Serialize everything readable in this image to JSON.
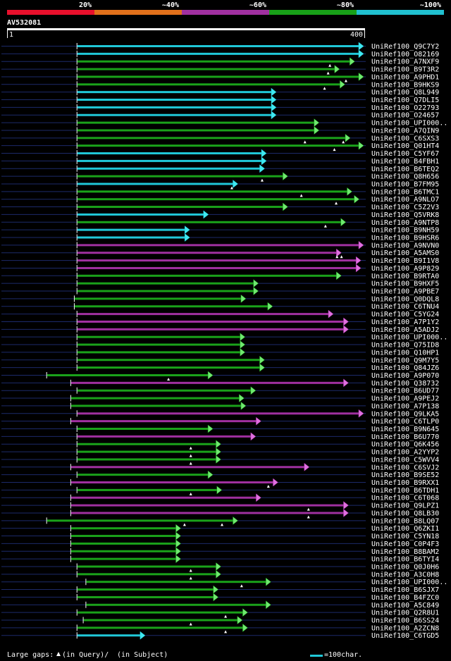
{
  "chart_data": {
    "type": "alignment-overview",
    "query_name": "AV532081",
    "query_start": "1",
    "query_end": "400",
    "query_length": 400,
    "identity_legend": [
      {
        "label": "20%",
        "color": "#e8102c"
      },
      {
        "label": "~40%",
        "color": "#e0701b"
      },
      {
        "label": "~60%",
        "color": "#a030a0"
      },
      {
        "label": "~80%",
        "color": "#18a018"
      },
      {
        "label": "~100%",
        "color": "#20c0d0"
      }
    ],
    "footer_label": "Large gaps:",
    "footer_query": "(in Query)/",
    "footer_subject": "(in Subject)",
    "scale_label": "=100char.",
    "hits": [
      {
        "name": "UniRef100_Q9C7Y2",
        "start": 79,
        "end": 400,
        "color": "cyan",
        "lpad": 32,
        "marks": []
      },
      {
        "name": "UniRef100_O82169",
        "start": 79,
        "end": 400,
        "color": "cyan",
        "lpad": 32,
        "marks": []
      },
      {
        "name": "UniRef100_A7NXF9",
        "start": 79,
        "end": 390,
        "color": "green",
        "lpad": 32,
        "marks": [
          363
        ]
      },
      {
        "name": "UniRef100_B9T3R2",
        "start": 79,
        "end": 373,
        "color": "green",
        "lpad": 32,
        "marks": [
          361
        ]
      },
      {
        "name": "UniRef100_A9PHD1",
        "start": 79,
        "end": 400,
        "color": "green",
        "lpad": 32,
        "marks": [
          381
        ]
      },
      {
        "name": "UniRef100_B9HKS9",
        "start": 79,
        "end": 379,
        "color": "green",
        "lpad": 32,
        "marks": [
          357
        ]
      },
      {
        "name": "UniRef100_Q8L949",
        "start": 79,
        "end": 302,
        "color": "cyan",
        "lpad": 32,
        "marks": []
      },
      {
        "name": "UniRef100_Q7DLI5",
        "start": 79,
        "end": 302,
        "color": "cyan",
        "lpad": 32,
        "marks": []
      },
      {
        "name": "UniRef100_O22793",
        "start": 79,
        "end": 302,
        "color": "cyan",
        "lpad": 32,
        "marks": []
      },
      {
        "name": "UniRef100_O24657",
        "start": 79,
        "end": 302,
        "color": "cyan",
        "lpad": 32,
        "marks": []
      },
      {
        "name": "UniRef100_UPI000..",
        "start": 79,
        "end": 350,
        "color": "green",
        "lpad": 32,
        "marks": []
      },
      {
        "name": "UniRef100_A7QIN9",
        "start": 79,
        "end": 350,
        "color": "green",
        "lpad": 32,
        "marks": []
      },
      {
        "name": "UniRef100_C6SXS3",
        "start": 79,
        "end": 385,
        "color": "green",
        "lpad": 32,
        "marks": [
          335,
          378
        ]
      },
      {
        "name": "UniRef100_Q01HT4",
        "start": 79,
        "end": 400,
        "color": "green",
        "lpad": 32,
        "marks": [
          368
        ]
      },
      {
        "name": "UniRef100_C5YF67",
        "start": 79,
        "end": 291,
        "color": "cyan",
        "lpad": 32,
        "marks": []
      },
      {
        "name": "UniRef100_B4FBH1",
        "start": 79,
        "end": 291,
        "color": "cyan",
        "lpad": 32,
        "marks": []
      },
      {
        "name": "UniRef100_B6TEQ2",
        "start": 79,
        "end": 289,
        "color": "cyan",
        "lpad": 32,
        "marks": []
      },
      {
        "name": "UniRef100_Q8H656",
        "start": 79,
        "end": 315,
        "color": "green",
        "lpad": 32,
        "marks": [
          287
        ]
      },
      {
        "name": "UniRef100_B7FM95",
        "start": 79,
        "end": 259,
        "color": "cyan",
        "lpad": 32,
        "marks": [
          253
        ]
      },
      {
        "name": "UniRef100_B6TMC1",
        "start": 79,
        "end": 387,
        "color": "green",
        "lpad": 32,
        "marks": [
          331
        ]
      },
      {
        "name": "UniRef100_A9NLO7",
        "start": 79,
        "end": 395,
        "color": "green",
        "lpad": 32,
        "marks": [
          370
        ]
      },
      {
        "name": "UniRef100_C5Z2V3",
        "start": 79,
        "end": 315,
        "color": "green",
        "lpad": 32,
        "marks": []
      },
      {
        "name": "UniRef100_Q5VRK8",
        "start": 79,
        "end": 226,
        "color": "cyan",
        "lpad": 32,
        "marks": []
      },
      {
        "name": "UniRef100_A9NTP8",
        "start": 79,
        "end": 380,
        "color": "green",
        "lpad": 32,
        "marks": [
          358
        ]
      },
      {
        "name": "UniRef100_B9NH59",
        "start": 79,
        "end": 205,
        "color": "cyan",
        "lpad": 32,
        "marks": []
      },
      {
        "name": "UniRef100_B9HSR6",
        "start": 79,
        "end": 205,
        "color": "cyan",
        "lpad": 32,
        "marks": []
      },
      {
        "name": "UniRef100_A9NVN0",
        "start": 79,
        "end": 400,
        "color": "purple",
        "lpad": 32,
        "marks": []
      },
      {
        "name": "UniRef100_A5AMS0",
        "start": 79,
        "end": 375,
        "color": "purple",
        "lpad": 32,
        "marks": [
          371,
          376
        ]
      },
      {
        "name": "UniRef100_B9I1V8",
        "start": 79,
        "end": 397,
        "color": "purple",
        "lpad": 32,
        "marks": []
      },
      {
        "name": "UniRef100_A9P829",
        "start": 79,
        "end": 397,
        "color": "purple",
        "lpad": 32,
        "marks": []
      },
      {
        "name": "UniRef100_B9RTA0",
        "start": 79,
        "end": 375,
        "color": "green",
        "lpad": 32,
        "marks": []
      },
      {
        "name": "UniRef100_B9HXF5",
        "start": 79,
        "end": 282,
        "color": "green",
        "lpad": 32,
        "marks": []
      },
      {
        "name": "UniRef100_A9PBE7",
        "start": 79,
        "end": 282,
        "color": "green",
        "lpad": 32,
        "marks": []
      },
      {
        "name": "UniRef100_Q0DQL8",
        "start": 76,
        "end": 268,
        "color": "green",
        "lpad": 32,
        "marks": []
      },
      {
        "name": "UniRef100_C6TNU4",
        "start": 76,
        "end": 298,
        "color": "green",
        "lpad": 32,
        "marks": []
      },
      {
        "name": "UniRef100_C5YG24",
        "start": 79,
        "end": 366,
        "color": "purple",
        "lpad": 32,
        "marks": []
      },
      {
        "name": "UniRef100_A7P1Y2",
        "start": 79,
        "end": 383,
        "color": "purple",
        "lpad": 32,
        "marks": []
      },
      {
        "name": "UniRef100_A5ADJ2",
        "start": 79,
        "end": 383,
        "color": "purple",
        "lpad": 32,
        "marks": []
      },
      {
        "name": "UniRef100_UPI000..",
        "start": 79,
        "end": 267,
        "color": "green",
        "lpad": 32,
        "marks": []
      },
      {
        "name": "UniRef100_Q75ID8",
        "start": 79,
        "end": 267,
        "color": "green",
        "lpad": 32,
        "marks": []
      },
      {
        "name": "UniRef100_Q10HP1",
        "start": 79,
        "end": 267,
        "color": "green",
        "lpad": 32,
        "marks": []
      },
      {
        "name": "UniRef100_Q9M7Y5",
        "start": 79,
        "end": 289,
        "color": "green",
        "lpad": 32,
        "marks": []
      },
      {
        "name": "UniRef100_Q84JZ6",
        "start": 79,
        "end": 289,
        "color": "green",
        "lpad": 32,
        "marks": []
      },
      {
        "name": "UniRef100_A9P070",
        "start": 45,
        "end": 231,
        "color": "green",
        "lpad": 32,
        "marks": [
          182
        ]
      },
      {
        "name": "UniRef100_Q38732",
        "start": 72,
        "end": 383,
        "color": "purple",
        "lpad": 32,
        "marks": []
      },
      {
        "name": "UniRef100_B6UD77",
        "start": 79,
        "end": 279,
        "color": "green",
        "lpad": 32,
        "marks": []
      },
      {
        "name": "UniRef100_A9PEJ2",
        "start": 72,
        "end": 266,
        "color": "green",
        "lpad": 32,
        "marks": []
      },
      {
        "name": "UniRef100_A7P138",
        "start": 72,
        "end": 268,
        "color": "green",
        "lpad": 32,
        "marks": []
      },
      {
        "name": "UniRef100_Q9LKA5",
        "start": 79,
        "end": 400,
        "color": "purple",
        "lpad": 32,
        "marks": []
      },
      {
        "name": "UniRef100_C6TLP0",
        "start": 72,
        "end": 285,
        "color": "purple",
        "lpad": 32,
        "marks": []
      },
      {
        "name": "UniRef100_B9N645",
        "start": 79,
        "end": 231,
        "color": "green",
        "lpad": 32,
        "marks": []
      },
      {
        "name": "UniRef100_B6U770",
        "start": 79,
        "end": 279,
        "color": "purple",
        "lpad": 32,
        "marks": []
      },
      {
        "name": "UniRef100_Q6K456",
        "start": 79,
        "end": 240,
        "color": "green",
        "lpad": 32,
        "marks": [
          207
        ]
      },
      {
        "name": "UniRef100_A2YYP2",
        "start": 79,
        "end": 240,
        "color": "green",
        "lpad": 32,
        "marks": [
          207
        ]
      },
      {
        "name": "UniRef100_C5WVV4",
        "start": 79,
        "end": 240,
        "color": "green",
        "lpad": 32,
        "marks": [
          207
        ]
      },
      {
        "name": "UniRef100_C6SVJ2",
        "start": 72,
        "end": 339,
        "color": "purple",
        "lpad": 32,
        "marks": []
      },
      {
        "name": "UniRef100_B9SE52",
        "start": 79,
        "end": 231,
        "color": "green",
        "lpad": 32,
        "marks": []
      },
      {
        "name": "UniRef100_B9RXX1",
        "start": 72,
        "end": 304,
        "color": "purple",
        "lpad": 32,
        "marks": [
          294
        ]
      },
      {
        "name": "UniRef100_B6TDH1",
        "start": 79,
        "end": 241,
        "color": "green",
        "lpad": 32,
        "marks": [
          207
        ]
      },
      {
        "name": "UniRef100_C6T068",
        "start": 72,
        "end": 285,
        "color": "purple",
        "lpad": 32,
        "marks": []
      },
      {
        "name": "UniRef100_Q9LPZ1",
        "start": 72,
        "end": 383,
        "color": "purple",
        "lpad": 32,
        "marks": [
          339
        ]
      },
      {
        "name": "UniRef100_Q8LB30",
        "start": 72,
        "end": 383,
        "color": "purple",
        "lpad": 32,
        "marks": [
          339
        ]
      },
      {
        "name": "UniRef100_B8LQ07",
        "start": 45,
        "end": 259,
        "color": "green",
        "lpad": 32,
        "marks": [
          200,
          242
        ]
      },
      {
        "name": "UniRef100_Q6ZKI1",
        "start": 72,
        "end": 195,
        "color": "green",
        "lpad": 32,
        "marks": []
      },
      {
        "name": "UniRef100_C5YN18",
        "start": 72,
        "end": 195,
        "color": "green",
        "lpad": 32,
        "marks": []
      },
      {
        "name": "UniRef100_C0P4F3",
        "start": 72,
        "end": 195,
        "color": "green",
        "lpad": 32,
        "marks": []
      },
      {
        "name": "UniRef100_B8BAM2",
        "start": 72,
        "end": 195,
        "color": "green",
        "lpad": 32,
        "marks": []
      },
      {
        "name": "UniRef100_B6TYI4",
        "start": 72,
        "end": 195,
        "color": "green",
        "lpad": 32,
        "marks": []
      },
      {
        "name": "UniRef100_Q0J0H6",
        "start": 79,
        "end": 240,
        "color": "green",
        "lpad": 32,
        "marks": [
          207
        ]
      },
      {
        "name": "UniRef100_A3C0H8",
        "start": 79,
        "end": 240,
        "color": "green",
        "lpad": 32,
        "marks": [
          207
        ]
      },
      {
        "name": "UniRef100_UPI000..",
        "start": 89,
        "end": 296,
        "color": "green",
        "lpad": 32,
        "marks": [
          264
        ]
      },
      {
        "name": "UniRef100_B6SJX7",
        "start": 79,
        "end": 237,
        "color": "green",
        "lpad": 32,
        "marks": []
      },
      {
        "name": "UniRef100_B4FZC0",
        "start": 79,
        "end": 237,
        "color": "green",
        "lpad": 32,
        "marks": []
      },
      {
        "name": "UniRef100_A5C849",
        "start": 89,
        "end": 296,
        "color": "green",
        "lpad": 32,
        "marks": []
      },
      {
        "name": "UniRef100_Q2R8U1",
        "start": 79,
        "end": 270,
        "color": "green",
        "lpad": 32,
        "marks": [
          246
        ]
      },
      {
        "name": "UniRef100_B6SS24",
        "start": 86,
        "end": 264,
        "color": "green",
        "lpad": 32,
        "marks": [
          207
        ]
      },
      {
        "name": "UniRef100_A2ZCN8",
        "start": 79,
        "end": 270,
        "color": "green",
        "lpad": 32,
        "marks": [
          246
        ]
      },
      {
        "name": "UniRef100_C6TGD5",
        "start": 79,
        "end": 155,
        "color": "cyan",
        "lpad": 32,
        "marks": []
      }
    ]
  }
}
